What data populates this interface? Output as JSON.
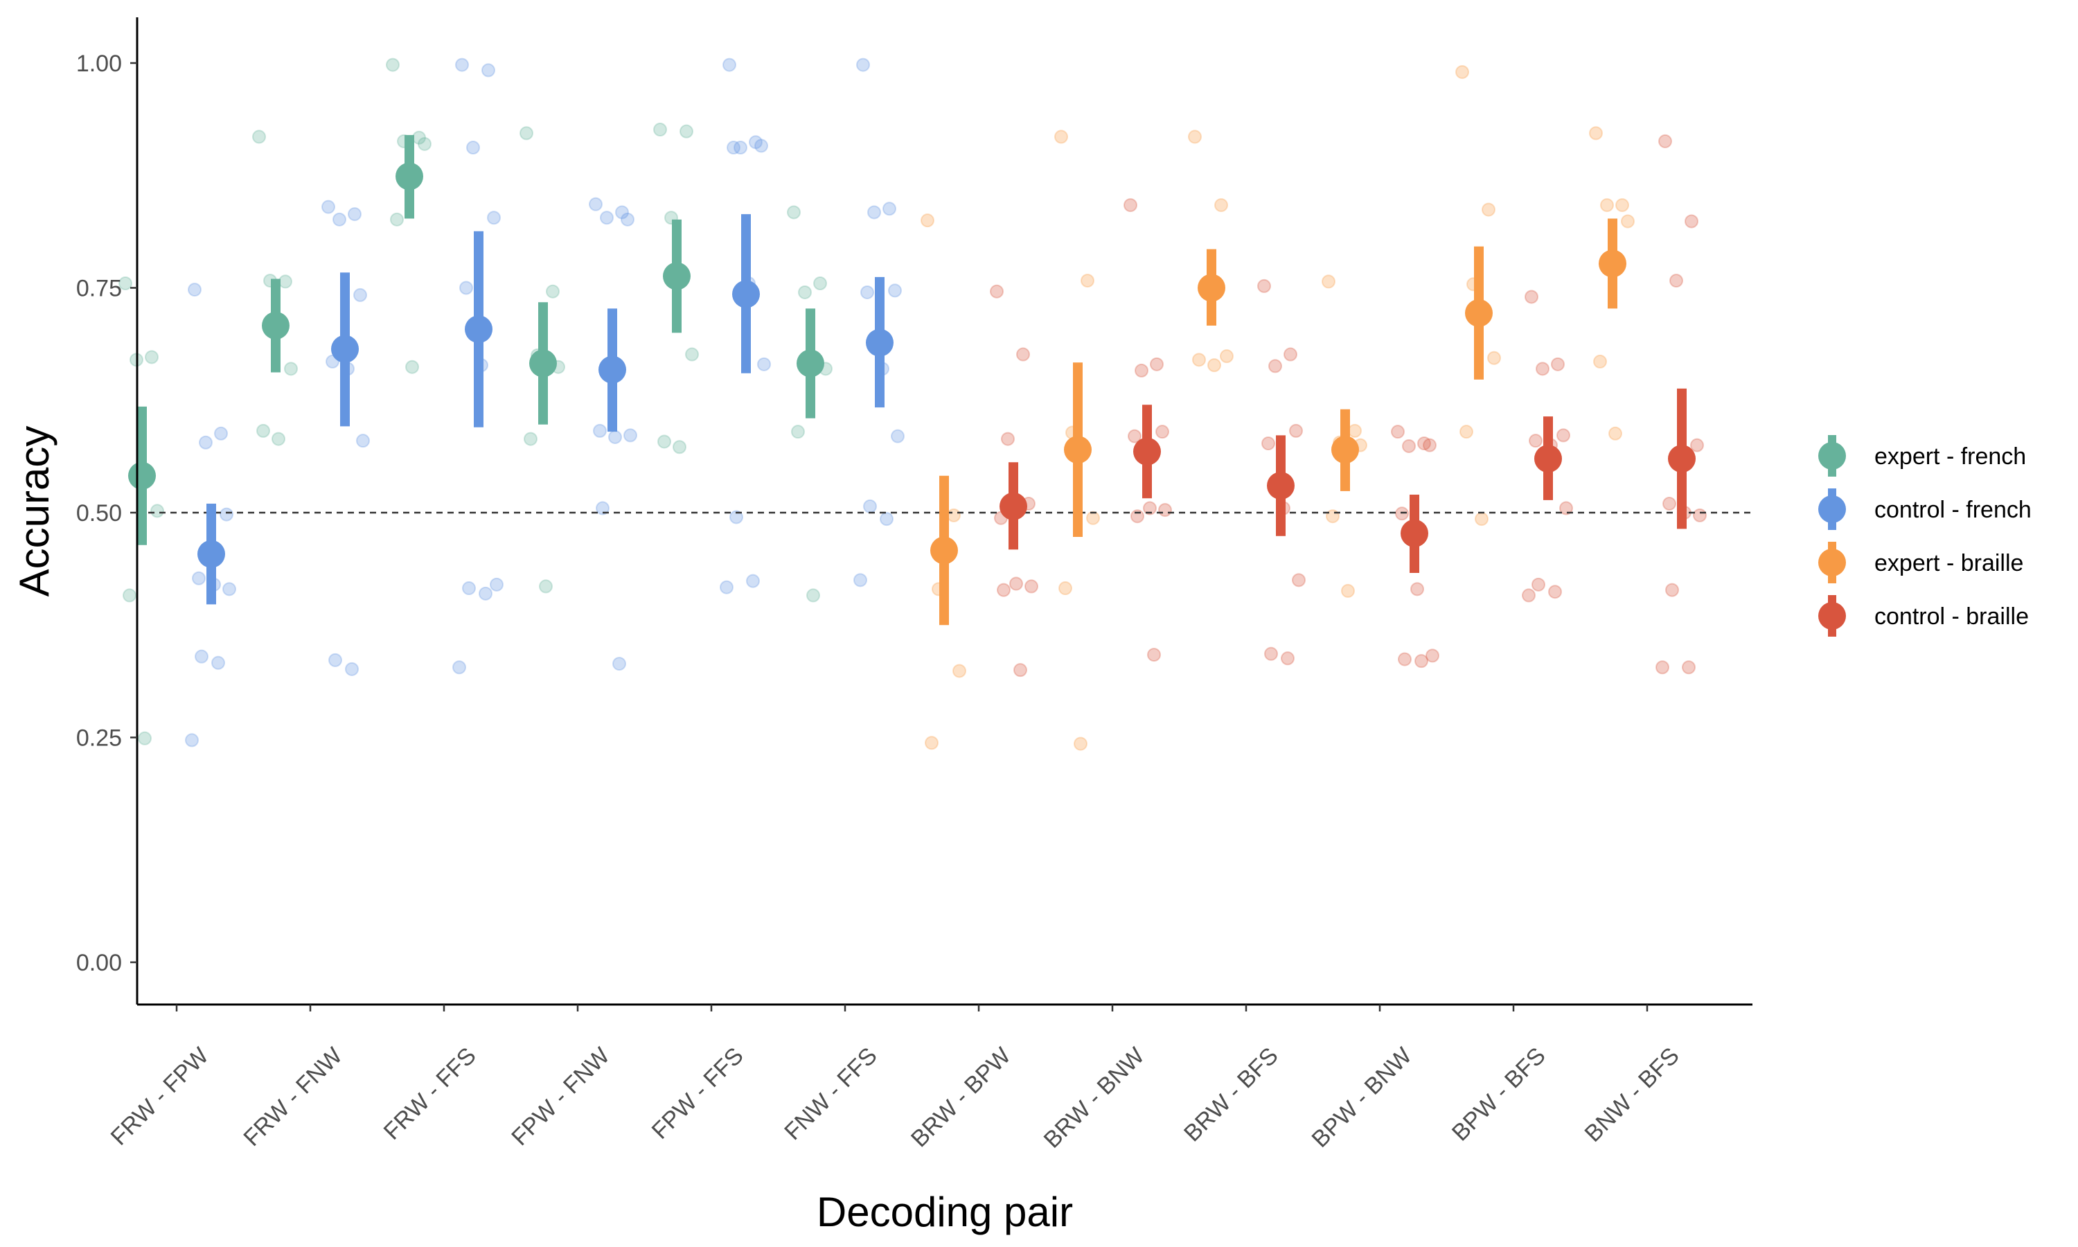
{
  "chart_data": {
    "type": "scatter",
    "title": "",
    "xlabel": "Decoding pair",
    "ylabel": "Accuracy",
    "categories": [
      "FRW - FPW",
      "FRW - FNW",
      "FRW - FFS",
      "FPW - FNW",
      "FPW - FFS",
      "FNW - FFS",
      "BRW - BPW",
      "BRW - BNW",
      "BRW - BFS",
      "BPW - BNW",
      "BPW - BFS",
      "BNW - BFS"
    ],
    "ylim": [
      -0.05,
      1.05
    ],
    "yticks": [
      0.0,
      0.25,
      0.5,
      0.75,
      1.0
    ],
    "ytick_labels": [
      "0.00",
      "0.25",
      "0.50",
      "0.75",
      "1.00"
    ],
    "reference_line": 0.5,
    "grid": false,
    "legend_position": "right",
    "colors": {
      "expert - french": "#66b29b",
      "control - french": "#6495e0",
      "expert - braille": "#f79a45",
      "control - braille": "#d8553e"
    },
    "series": [
      {
        "name": "expert - french",
        "color": "#66b29b",
        "points": [
          {
            "category": "FRW - FPW",
            "mean": 0.541,
            "lower": 0.464,
            "upper": 0.618,
            "individual": [
              0.755,
              0.673,
              0.67,
              0.502,
              0.408,
              0.249
            ]
          },
          {
            "category": "FRW - FNW",
            "mean": 0.708,
            "lower": 0.656,
            "upper": 0.76,
            "individual": [
              0.918,
              0.757,
              0.758,
              0.66,
              0.591,
              0.582
            ]
          },
          {
            "category": "FRW - FFS",
            "mean": 0.874,
            "lower": 0.827,
            "upper": 0.92,
            "individual": [
              0.998,
              0.917,
              0.913,
              0.91,
              0.826,
              0.662
            ]
          },
          {
            "category": "FPW - FNW",
            "mean": 0.666,
            "lower": 0.598,
            "upper": 0.734,
            "individual": [
              0.922,
              0.746,
              0.675,
              0.662,
              0.582,
              0.418
            ]
          },
          {
            "category": "FPW - FFS",
            "mean": 0.763,
            "lower": 0.7,
            "upper": 0.826,
            "individual": [
              0.926,
              0.924,
              0.828,
              0.676,
              0.579,
              0.573
            ]
          },
          {
            "category": "FNW - FFS",
            "mean": 0.666,
            "lower": 0.605,
            "upper": 0.727,
            "individual": [
              0.834,
              0.755,
              0.745,
              0.66,
              0.59,
              0.408
            ]
          }
        ]
      },
      {
        "name": "control - french",
        "color": "#6495e0",
        "points": [
          {
            "category": "FRW - FPW",
            "mean": 0.454,
            "lower": 0.398,
            "upper": 0.51,
            "individual": [
              0.748,
              0.588,
              0.578,
              0.498,
              0.427,
              0.42,
              0.415,
              0.34,
              0.333,
              0.247
            ]
          },
          {
            "category": "FRW - FNW",
            "mean": 0.682,
            "lower": 0.596,
            "upper": 0.767,
            "individual": [
              0.84,
              0.832,
              0.826,
              0.742,
              0.668,
              0.66,
              0.58,
              0.336,
              0.326
            ]
          },
          {
            "category": "FRW - FFS",
            "mean": 0.704,
            "lower": 0.595,
            "upper": 0.813,
            "individual": [
              0.998,
              0.992,
              0.906,
              0.828,
              0.75,
              0.664,
              0.42,
              0.416,
              0.41,
              0.328
            ]
          },
          {
            "category": "FPW - FNW",
            "mean": 0.659,
            "lower": 0.59,
            "upper": 0.727,
            "individual": [
              0.843,
              0.834,
              0.828,
              0.826,
              0.591,
              0.584,
              0.586,
              0.505,
              0.332
            ]
          },
          {
            "category": "FPW - FFS",
            "mean": 0.743,
            "lower": 0.655,
            "upper": 0.832,
            "individual": [
              0.998,
              0.912,
              0.906,
              0.908,
              0.906,
              0.755,
              0.665,
              0.495,
              0.424,
              0.417
            ]
          },
          {
            "category": "FNW - FFS",
            "mean": 0.689,
            "lower": 0.617,
            "upper": 0.762,
            "individual": [
              0.998,
              0.838,
              0.834,
              0.747,
              0.745,
              0.66,
              0.585,
              0.507,
              0.493,
              0.425
            ]
          }
        ]
      },
      {
        "name": "expert - braille",
        "color": "#f79a45",
        "points": [
          {
            "category": "BRW - BPW",
            "mean": 0.458,
            "lower": 0.375,
            "upper": 0.541,
            "individual": [
              0.825,
              0.497,
              0.415,
              0.324,
              0.244
            ]
          },
          {
            "category": "BRW - BNW",
            "mean": 0.57,
            "lower": 0.473,
            "upper": 0.667,
            "individual": [
              0.918,
              0.758,
              0.589,
              0.494,
              0.416,
              0.243
            ]
          },
          {
            "category": "BRW - BFS",
            "mean": 0.75,
            "lower": 0.708,
            "upper": 0.793,
            "individual": [
              0.918,
              0.842,
              0.752,
              0.674,
              0.67,
              0.664
            ]
          },
          {
            "category": "BPW - BNW",
            "mean": 0.57,
            "lower": 0.524,
            "upper": 0.615,
            "individual": [
              0.757,
              0.591,
              0.578,
              0.575,
              0.496,
              0.413
            ]
          },
          {
            "category": "BPW - BFS",
            "mean": 0.722,
            "lower": 0.648,
            "upper": 0.796,
            "individual": [
              0.99,
              0.837,
              0.754,
              0.672,
              0.59,
              0.493
            ]
          },
          {
            "category": "BNW - BFS",
            "mean": 0.777,
            "lower": 0.727,
            "upper": 0.827,
            "individual": [
              0.922,
              0.842,
              0.842,
              0.824,
              0.668,
              0.588
            ]
          }
        ]
      },
      {
        "name": "control - braille",
        "color": "#d8553e",
        "points": [
          {
            "category": "BRW - BPW",
            "mean": 0.507,
            "lower": 0.459,
            "upper": 0.556,
            "individual": [
              0.746,
              0.676,
              0.582,
              0.51,
              0.494,
              0.421,
              0.418,
              0.414,
              0.325
            ]
          },
          {
            "category": "BRW - BNW",
            "mean": 0.568,
            "lower": 0.516,
            "upper": 0.62,
            "individual": [
              0.842,
              0.665,
              0.658,
              0.59,
              0.585,
              0.505,
              0.503,
              0.496,
              0.342
            ]
          },
          {
            "category": "BRW - BFS",
            "mean": 0.53,
            "lower": 0.474,
            "upper": 0.586,
            "individual": [
              0.752,
              0.676,
              0.663,
              0.591,
              0.577,
              0.505,
              0.425,
              0.343,
              0.338
            ]
          },
          {
            "category": "BPW - BNW",
            "mean": 0.477,
            "lower": 0.433,
            "upper": 0.52,
            "individual": [
              0.59,
              0.577,
              0.574,
              0.575,
              0.499,
              0.415,
              0.341,
              0.337,
              0.335
            ]
          },
          {
            "category": "BPW - BFS",
            "mean": 0.56,
            "lower": 0.514,
            "upper": 0.607,
            "individual": [
              0.74,
              0.665,
              0.66,
              0.586,
              0.58,
              0.575,
              0.505,
              0.42,
              0.412,
              0.408
            ]
          },
          {
            "category": "BNW - BFS",
            "mean": 0.56,
            "lower": 0.482,
            "upper": 0.638,
            "individual": [
              0.913,
              0.824,
              0.758,
              0.575,
              0.51,
              0.5,
              0.497,
              0.414,
              0.328,
              0.328
            ]
          }
        ]
      }
    ]
  }
}
